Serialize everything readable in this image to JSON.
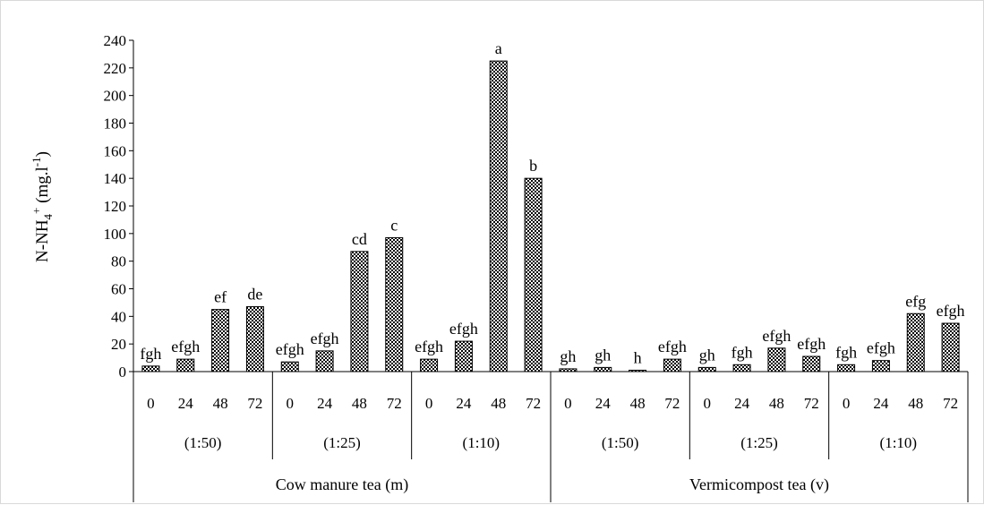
{
  "chart_data": {
    "type": "bar",
    "ylabel_main": "N-NH",
    "ylabel_sub": "4",
    "ylabel_sup": "+",
    "ylabel_unit": " (mg.l",
    "ylabel_unit_sup": "-1",
    "ylabel_close": ")",
    "ylim": [
      0,
      240
    ],
    "yticks": [
      "0",
      "20",
      "40",
      "60",
      "80",
      "100",
      "120",
      "140",
      "160",
      "180",
      "200",
      "220",
      "240"
    ],
    "grid": false,
    "bar_pattern": "checkered",
    "groups": [
      {
        "name": "Cow manure tea (m)",
        "subgroups": [
          {
            "name": "(1:50)",
            "hours": [
              "0",
              "24",
              "48",
              "72"
            ],
            "values": [
              4,
              9,
              45,
              47
            ],
            "letters": [
              "fgh",
              "efgh",
              "ef",
              "de"
            ]
          },
          {
            "name": "(1:25)",
            "hours": [
              "0",
              "24",
              "48",
              "72"
            ],
            "values": [
              7,
              15,
              87,
              97
            ],
            "letters": [
              "efgh",
              "efgh",
              "cd",
              "c"
            ]
          },
          {
            "name": "(1:10)",
            "hours": [
              "0",
              "24",
              "48",
              "72"
            ],
            "values": [
              9,
              22,
              225,
              140
            ],
            "letters": [
              "efgh",
              "efgh",
              "a",
              "b"
            ]
          }
        ]
      },
      {
        "name": "Vermicompost tea (v)",
        "subgroups": [
          {
            "name": "(1:50)",
            "hours": [
              "0",
              "24",
              "48",
              "72"
            ],
            "values": [
              2,
              3,
              1,
              9
            ],
            "letters": [
              "gh",
              "gh",
              "h",
              "efgh"
            ]
          },
          {
            "name": "(1:25)",
            "hours": [
              "0",
              "24",
              "48",
              "72"
            ],
            "values": [
              3,
              5,
              17,
              11
            ],
            "letters": [
              "gh",
              "fgh",
              "efgh",
              "efgh"
            ]
          },
          {
            "name": "(1:10)",
            "hours": [
              "0",
              "24",
              "48",
              "72"
            ],
            "values": [
              5,
              8,
              42,
              35
            ],
            "letters": [
              "fgh",
              "efgh",
              "efg",
              "efgh"
            ]
          }
        ]
      }
    ]
  }
}
